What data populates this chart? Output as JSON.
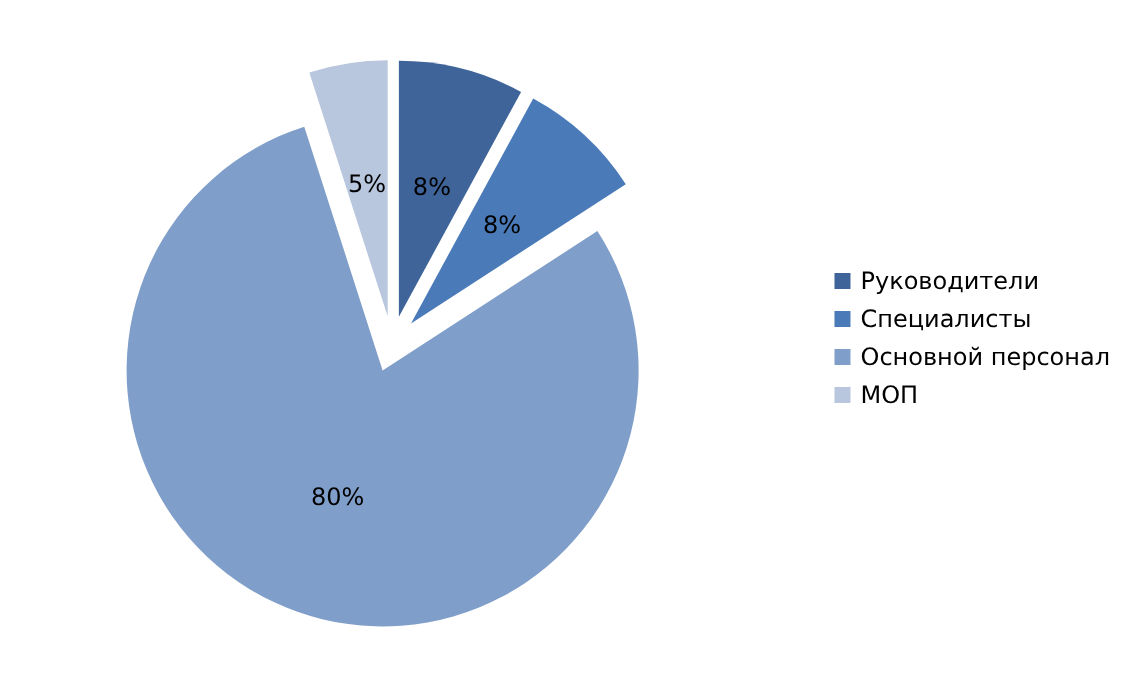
{
  "chart_data": {
    "type": "pie",
    "categories": [
      "Руководители",
      "Специалисты",
      "Основной персонал",
      "МОП"
    ],
    "values": [
      8,
      8,
      80,
      5
    ],
    "value_labels": [
      "8%",
      "8%",
      "80%",
      "5%"
    ],
    "colors": [
      "#3f6499",
      "#4a7ab8",
      "#7f9ec9",
      "#b8c6de"
    ],
    "legend": "right"
  }
}
